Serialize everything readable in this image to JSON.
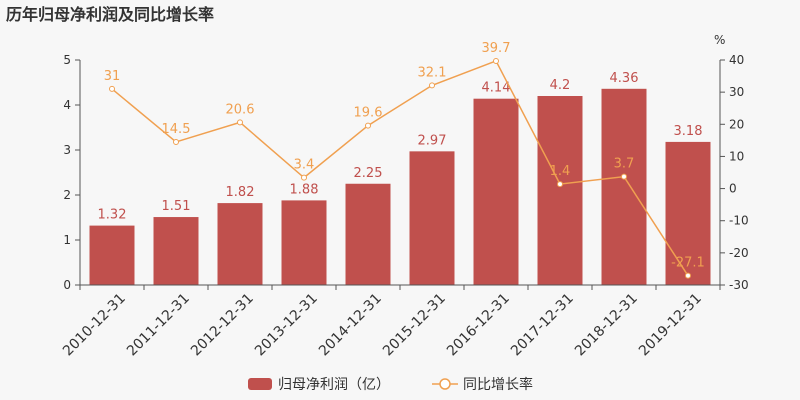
{
  "chart_data": {
    "type": "bar",
    "title": "历年归母净利润及同比增长率",
    "categories": [
      "2010-12-31",
      "2011-12-31",
      "2012-12-31",
      "2013-12-31",
      "2014-12-31",
      "2015-12-31",
      "2016-12-31",
      "2017-12-31",
      "2018-12-31",
      "2019-12-31"
    ],
    "series": [
      {
        "name": "归母净利润（亿）",
        "type": "bar",
        "axis": "left",
        "values": [
          1.32,
          1.51,
          1.82,
          1.88,
          2.25,
          2.97,
          4.14,
          4.2,
          4.36,
          3.18
        ],
        "labels": [
          "1.32",
          "1.51",
          "1.82",
          "1.88",
          "2.25",
          "2.97",
          "4.14",
          "4.2",
          "4.36",
          "3.18"
        ],
        "color": "#c0504d"
      },
      {
        "name": "同比增长率",
        "type": "line",
        "axis": "right",
        "values": [
          31,
          14.5,
          20.6,
          3.4,
          19.6,
          32.1,
          39.7,
          1.4,
          3.7,
          -27.1
        ],
        "labels": [
          "31",
          "14.5",
          "20.6",
          "3.4",
          "19.6",
          "32.1",
          "39.7",
          "1.4",
          "3.7",
          "-27.1"
        ],
        "color": "#f0a050"
      }
    ],
    "y_left": {
      "min": 0,
      "max": 5,
      "ticks": [
        "0",
        "1",
        "2",
        "3",
        "4",
        "5"
      ]
    },
    "y_right": {
      "min": -30,
      "max": 40,
      "label": "%",
      "ticks": [
        "-30",
        "-20",
        "-10",
        "0",
        "10",
        "20",
        "30",
        "40"
      ]
    },
    "grid": false,
    "legend_position": "bottom-center"
  }
}
